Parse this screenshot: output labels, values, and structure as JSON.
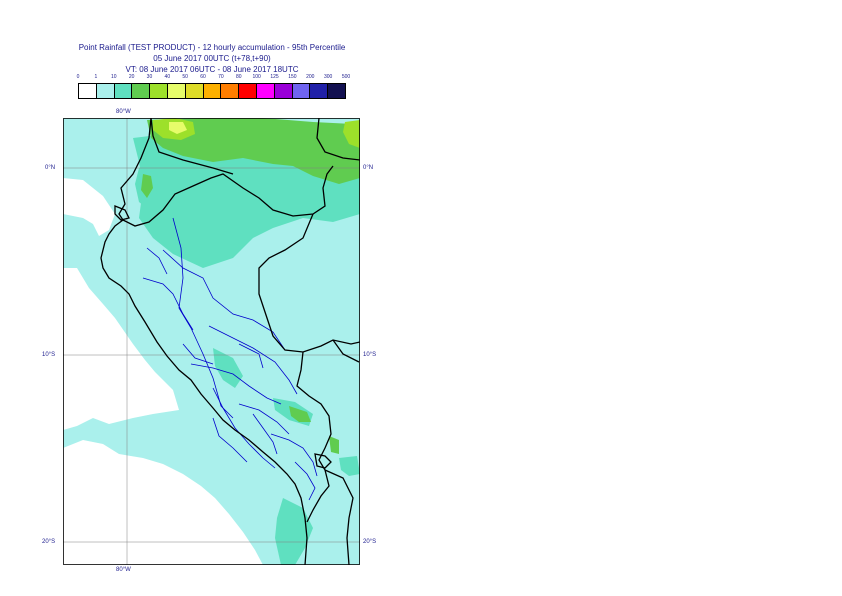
{
  "title": {
    "line1": "Point Rainfall (TEST PRODUCT) - 12 hourly accumulation - 95th Percentile",
    "line2": "05 June 2017 00UTC (t+78,t+90)",
    "line3": "VT: 08 June 2017 06UTC - 08 June 2017 18UTC"
  },
  "legend": {
    "labels": [
      "0",
      "1",
      "10",
      "20",
      "30",
      "40",
      "50",
      "60",
      "70",
      "80",
      "100",
      "125",
      "150",
      "200",
      "300",
      "500"
    ],
    "colors": [
      "#ffffff",
      "#aaf0ec",
      "#5fe0c0",
      "#60cc50",
      "#9de02a",
      "#e6fc6a",
      "#dedc28",
      "#fcb000",
      "#ff7e00",
      "#ff0000",
      "#ff00ff",
      "#9a00d8",
      "#7064f0",
      "#2020a8",
      "#121050"
    ]
  },
  "axes": {
    "lon_top": "80°W",
    "lon_bottom": "80°W",
    "lat_left": [
      "0°N",
      "10°S",
      "20°S"
    ],
    "lat_right": [
      "0°N",
      "10°S",
      "20°S"
    ]
  },
  "map": {
    "background_color": "#aaf0ec",
    "dry_color": "#ffffff",
    "coast_color": "#000000",
    "border_color": "#0000cc",
    "grid_color": "#808080"
  }
}
